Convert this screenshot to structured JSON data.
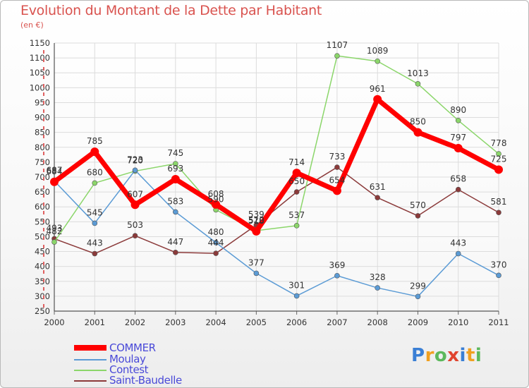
{
  "title": "Evolution du Montant de la Dette par Habitant",
  "unit": "(en €)",
  "logo": "Proxiti",
  "chart_data": {
    "type": "line",
    "title": "Evolution du Montant de la Dette par Habitant",
    "ylabel": "(en €)",
    "xlabel": "",
    "ylim": [
      250,
      1150
    ],
    "yticks": [
      250,
      300,
      350,
      400,
      450,
      500,
      550,
      600,
      650,
      700,
      750,
      800,
      850,
      900,
      950,
      1000,
      1050,
      1100,
      1150
    ],
    "x": [
      "2000",
      "2001",
      "2002",
      "2003",
      "2004",
      "2005",
      "2006",
      "2007",
      "2008",
      "2009",
      "2010",
      "2011"
    ],
    "grid": true,
    "legend": "bottom-left",
    "series": [
      {
        "name": "COMMER",
        "color": "#ff0000",
        "values": [
          684,
          785,
          607,
          693,
          608,
          518,
          714,
          654,
          961,
          850,
          797,
          725
        ]
      },
      {
        "name": "Moulay",
        "color": "#5b9bd5",
        "values": [
          687,
          545,
          723,
          583,
          480,
          377,
          301,
          369,
          328,
          299,
          443,
          370
        ]
      },
      {
        "name": "Contest",
        "color": "#8bd66a",
        "values": [
          482,
          680,
          720,
          745,
          590,
          520,
          537,
          1107,
          1089,
          1013,
          890,
          778
        ]
      },
      {
        "name": "Saint-Baudelle",
        "color": "#8b3a3a",
        "values": [
          493,
          443,
          503,
          447,
          444,
          539,
          650,
          733,
          631,
          570,
          658,
          581
        ]
      }
    ]
  }
}
